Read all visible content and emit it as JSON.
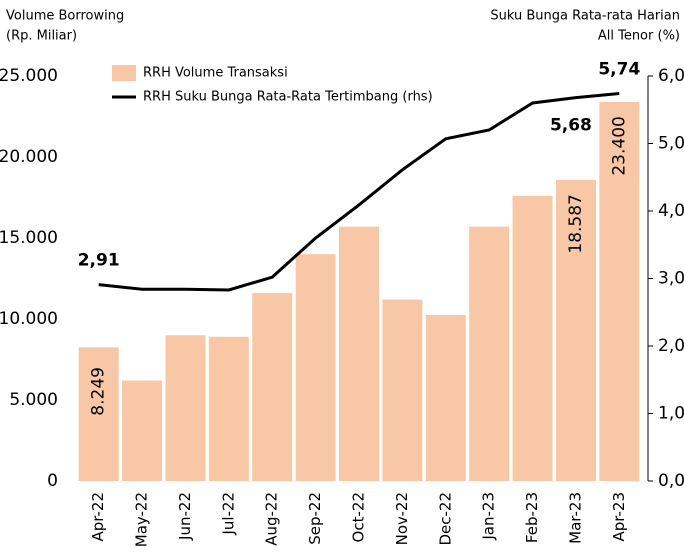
{
  "chart_data": {
    "type": "bar_line",
    "y_label": [
      "Volume Borrowing",
      "(Rp. Miliar)"
    ],
    "y2_label": [
      "Suku Bunga Rata-rata Harian",
      "All Tenor (%)"
    ],
    "categories": [
      "Apr-22",
      "May-22",
      "Jun-22",
      "Jul-22",
      "Aug-22",
      "Sep-22",
      "Oct-22",
      "Nov-22",
      "Dec-22",
      "Jan-23",
      "Feb-23",
      "Mar-23",
      "Apr-23"
    ],
    "series": [
      {
        "name": "RRH Volume Transaksi",
        "type": "bar",
        "color": "#f8c8a6",
        "values": [
          8249,
          6200,
          9000,
          8900,
          11600,
          14000,
          15700,
          11200,
          10250,
          15700,
          17600,
          18587,
          23400
        ],
        "value_labels": [
          "8.249",
          null,
          null,
          null,
          null,
          null,
          null,
          null,
          null,
          null,
          null,
          "18.587",
          "23.400"
        ]
      },
      {
        "name": "RRH Suku Bunga Rata-Rata Tertimbang (rhs)",
        "type": "line",
        "axis": "y2",
        "color": "#000000",
        "values": [
          2.91,
          2.84,
          2.84,
          2.83,
          3.02,
          3.6,
          4.09,
          4.61,
          5.07,
          5.2,
          5.6,
          5.68,
          5.74
        ],
        "value_labels": [
          "2,91",
          null,
          null,
          null,
          null,
          null,
          null,
          null,
          null,
          null,
          null,
          "5,68",
          "5,74"
        ]
      }
    ],
    "ylim": [
      0,
      25000
    ],
    "yticks": [
      0,
      {
        "value": 5000,
        "label": "5.000"
      },
      {
        "value": 10000,
        "label": "10.000"
      },
      {
        "value": 15000,
        "label": "15.000"
      },
      {
        "value": 20000,
        "label": "20.000"
      },
      {
        "value": 25000,
        "label": "25.000"
      }
    ],
    "y2lim": [
      0,
      6
    ],
    "y2ticks": [
      {
        "value": 0,
        "label": "0,0"
      },
      {
        "value": 1,
        "label": "1,0"
      },
      {
        "value": 2,
        "label": "2,0"
      },
      {
        "value": 3,
        "label": "3,0"
      },
      {
        "value": 4,
        "label": "4,0"
      },
      {
        "value": 5,
        "label": "5,0"
      },
      {
        "value": 6,
        "label": "6,0"
      }
    ],
    "grid": false
  }
}
